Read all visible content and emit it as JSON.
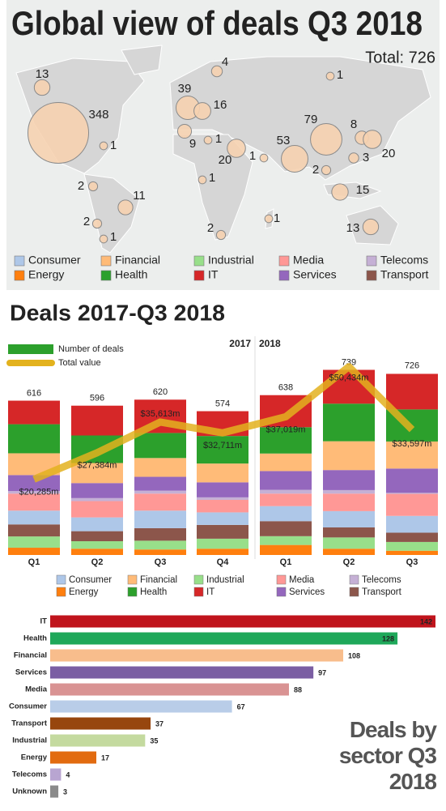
{
  "map": {
    "title": "Global view of deals Q3 2018",
    "total": "Total: 726",
    "bubbles": [
      13,
      348,
      1,
      39,
      16,
      4,
      1,
      79,
      8,
      53,
      3,
      20,
      1,
      9,
      20,
      1,
      1,
      2,
      11,
      2,
      1,
      2,
      1,
      2,
      15,
      13
    ],
    "legend": [
      {
        "name": "Consumer",
        "color": "#aec7e8"
      },
      {
        "name": "Financial",
        "color": "#ffbb78"
      },
      {
        "name": "Industrial",
        "color": "#98df8a"
      },
      {
        "name": "Media",
        "color": "#ff9896"
      },
      {
        "name": "Telecoms",
        "color": "#c5b0d5"
      },
      {
        "name": "Energy",
        "color": "#ff7f0e"
      },
      {
        "name": "Health",
        "color": "#2ca02c"
      },
      {
        "name": "IT",
        "color": "#d62728"
      },
      {
        "name": "Services",
        "color": "#9467bd"
      },
      {
        "name": "Transport",
        "color": "#8c564b"
      }
    ]
  },
  "chart_data": [
    {
      "type": "stacked-bar",
      "title": "Deals 2017-Q3 2018",
      "categories": [
        "Q1",
        "Q2",
        "Q3",
        "Q4",
        "Q1",
        "Q2",
        "Q3"
      ],
      "years": [
        "2017",
        "2018"
      ],
      "bars_legend": "Number of deals",
      "bars_legend_color": "#2ca02c",
      "totals": [
        616,
        596,
        620,
        574,
        638,
        739,
        726
      ],
      "ylim": [
        0,
        760
      ],
      "y2lim": [
        0,
        51000
      ],
      "series": [
        {
          "name": "Energy",
          "color": "#ff7f0e",
          "values": [
            29,
            25,
            22,
            25,
            40,
            25,
            17
          ]
        },
        {
          "name": "Industrial",
          "color": "#98df8a",
          "values": [
            45,
            30,
            35,
            40,
            35,
            45,
            35
          ]
        },
        {
          "name": "Transport",
          "color": "#8c564b",
          "values": [
            48,
            40,
            50,
            55,
            60,
            40,
            37
          ]
        },
        {
          "name": "Consumer",
          "color": "#aec7e8",
          "values": [
            55,
            55,
            70,
            50,
            60,
            65,
            67
          ]
        },
        {
          "name": "Media",
          "color": "#ff9896",
          "values": [
            68,
            65,
            68,
            50,
            50,
            70,
            88
          ]
        },
        {
          "name": "Telecoms",
          "color": "#c5b0d5",
          "values": [
            10,
            12,
            12,
            10,
            15,
            14,
            4
          ]
        },
        {
          "name": "Services",
          "color": "#9467bd",
          "values": [
            64,
            60,
            55,
            60,
            75,
            80,
            97
          ]
        },
        {
          "name": "Financial",
          "color": "#ffbb78",
          "values": [
            87,
            80,
            75,
            75,
            70,
            115,
            108
          ]
        },
        {
          "name": "Health",
          "color": "#2ca02c",
          "values": [
            116,
            110,
            100,
            110,
            105,
            150,
            128
          ]
        },
        {
          "name": "IT",
          "color": "#d62728",
          "values": [
            94,
            119,
            133,
            99,
            128,
            135,
            142
          ]
        }
      ],
      "line": {
        "name": "Total value",
        "color": "#e3b21e",
        "axis": "y2",
        "values": [
          20285,
          27384,
          35613,
          32711,
          37019,
          50434,
          33597
        ],
        "value_labels": [
          "$20,285m",
          "$27,384m",
          "$35,613m",
          "$32,711m",
          "$37,019m",
          "$50,434m",
          "$33,597m"
        ]
      }
    },
    {
      "type": "hbar",
      "title": "Deals by sector Q3 2018",
      "categories": [
        "IT",
        "Health",
        "Financial",
        "Services",
        "Media",
        "Consumer",
        "Transport",
        "Industrial",
        "Energy",
        "Telecoms",
        "Unknown"
      ],
      "values": [
        142,
        128,
        108,
        97,
        88,
        67,
        37,
        35,
        17,
        4,
        3
      ],
      "colors": [
        "#c0141c",
        "#1fa85a",
        "#f8bd8c",
        "#7b5ea3",
        "#d99393",
        "#b9cde8",
        "#97460e",
        "#c4da9f",
        "#e26b10",
        "#b8a5d1",
        "#8a8a8a"
      ],
      "xlim": [
        0,
        142
      ]
    }
  ]
}
